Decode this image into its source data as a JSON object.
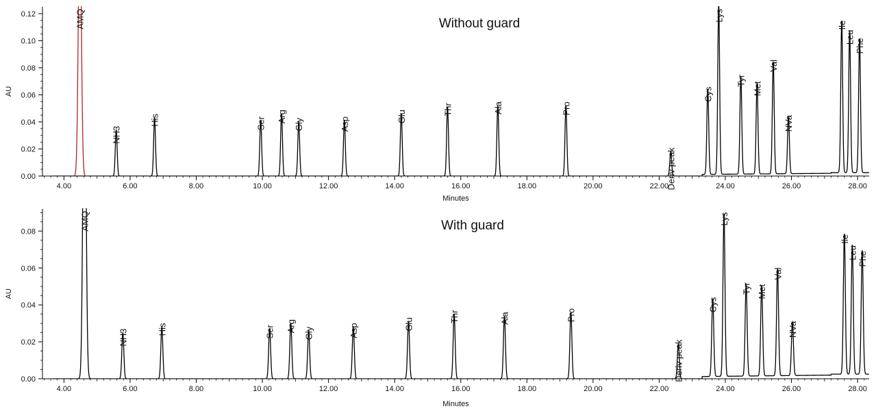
{
  "chart_data": [
    {
      "type": "line",
      "title": "Without guard",
      "xlabel": "Minutes",
      "ylabel": "AU",
      "xlim": [
        3.35,
        28.35
      ],
      "ylim": [
        0,
        0.125
      ],
      "xticks": [
        "4.00",
        "6.00",
        "8.00",
        "10.00",
        "12.00",
        "14.00",
        "16.00",
        "18.00",
        "20.00",
        "22.00",
        "24.00",
        "26.00",
        "28.00"
      ],
      "yticks": [
        "0.00",
        "0.02",
        "0.04",
        "0.06",
        "0.08",
        "0.10",
        "0.12"
      ],
      "grid": false,
      "series": [
        {
          "color": "#000000",
          "peaks": [
            {
              "label": "NH3",
              "x": 5.58,
              "y": 0.034
            },
            {
              "label": "His",
              "x": 6.74,
              "y": 0.043
            },
            {
              "label": "Ser",
              "x": 9.95,
              "y": 0.041
            },
            {
              "label": "Arg",
              "x": 10.58,
              "y": 0.046
            },
            {
              "label": "Gly",
              "x": 11.1,
              "y": 0.04
            },
            {
              "label": "Asp",
              "x": 12.48,
              "y": 0.041
            },
            {
              "label": "Glu",
              "x": 14.2,
              "y": 0.046
            },
            {
              "label": "Thr",
              "x": 15.6,
              "y": 0.051
            },
            {
              "label": "Ala",
              "x": 17.12,
              "y": 0.052
            },
            {
              "label": "Pro",
              "x": 19.18,
              "y": 0.052
            },
            {
              "label": "Deriv peak",
              "x": 22.35,
              "y": 0.018
            },
            {
              "label": "Cys",
              "x": 23.47,
              "y": 0.063
            },
            {
              "label": "Lys",
              "x": 23.8,
              "y": 0.126
            },
            {
              "label": "Tyr",
              "x": 24.47,
              "y": 0.072
            },
            {
              "label": "Met",
              "x": 24.96,
              "y": 0.067
            },
            {
              "label": "Val",
              "x": 25.45,
              "y": 0.083
            },
            {
              "label": "NVa",
              "x": 25.91,
              "y": 0.042
            },
            {
              "label": "Ile",
              "x": 27.52,
              "y": 0.112
            },
            {
              "label": "Leu",
              "x": 27.76,
              "y": 0.105
            },
            {
              "label": "Phe",
              "x": 28.06,
              "y": 0.099
            }
          ]
        },
        {
          "color": "#b22222",
          "peaks": [
            {
              "label": "AMQ",
              "x": 4.48,
              "y": 0.2
            }
          ]
        }
      ]
    },
    {
      "type": "line",
      "title": "With guard",
      "xlabel": "Minutes",
      "ylabel": "AU",
      "xlim": [
        3.35,
        28.35
      ],
      "ylim": [
        0,
        0.092
      ],
      "xticks": [
        "4.00",
        "6.00",
        "8.00",
        "10.00",
        "12.00",
        "14.00",
        "16.00",
        "18.00",
        "20.00",
        "22.00",
        "24.00",
        "26.00",
        "28.00"
      ],
      "yticks": [
        "0.00",
        "0.02",
        "0.04",
        "0.06",
        "0.08"
      ],
      "grid": false,
      "series": [
        {
          "color": "#000000",
          "peaks": [
            {
              "label": "AMQ",
              "x": 4.62,
              "y": 0.2
            },
            {
              "label": "NH3",
              "x": 5.78,
              "y": 0.025
            },
            {
              "label": "His",
              "x": 6.96,
              "y": 0.028
            },
            {
              "label": "Ser",
              "x": 10.22,
              "y": 0.027
            },
            {
              "label": "Arg",
              "x": 10.86,
              "y": 0.03
            },
            {
              "label": "Gly",
              "x": 11.4,
              "y": 0.026
            },
            {
              "label": "Asp",
              "x": 12.75,
              "y": 0.028
            },
            {
              "label": "Glu",
              "x": 14.42,
              "y": 0.031
            },
            {
              "label": "Thr",
              "x": 15.8,
              "y": 0.035
            },
            {
              "label": "Ala",
              "x": 17.32,
              "y": 0.034
            },
            {
              "label": "Pro",
              "x": 19.33,
              "y": 0.036
            },
            {
              "label": "Deriv peak",
              "x": 22.58,
              "y": 0.019
            },
            {
              "label": "Cys",
              "x": 23.62,
              "y": 0.042
            },
            {
              "label": "Lys",
              "x": 23.96,
              "y": 0.088
            },
            {
              "label": "Tyr",
              "x": 24.63,
              "y": 0.05
            },
            {
              "label": "Met",
              "x": 25.1,
              "y": 0.049
            },
            {
              "label": "Val",
              "x": 25.58,
              "y": 0.058
            },
            {
              "label": "NVa",
              "x": 26.03,
              "y": 0.029
            },
            {
              "label": "Ile",
              "x": 27.6,
              "y": 0.076
            },
            {
              "label": "Leu",
              "x": 27.84,
              "y": 0.07
            },
            {
              "label": "Phe",
              "x": 28.14,
              "y": 0.067
            }
          ]
        }
      ]
    }
  ]
}
